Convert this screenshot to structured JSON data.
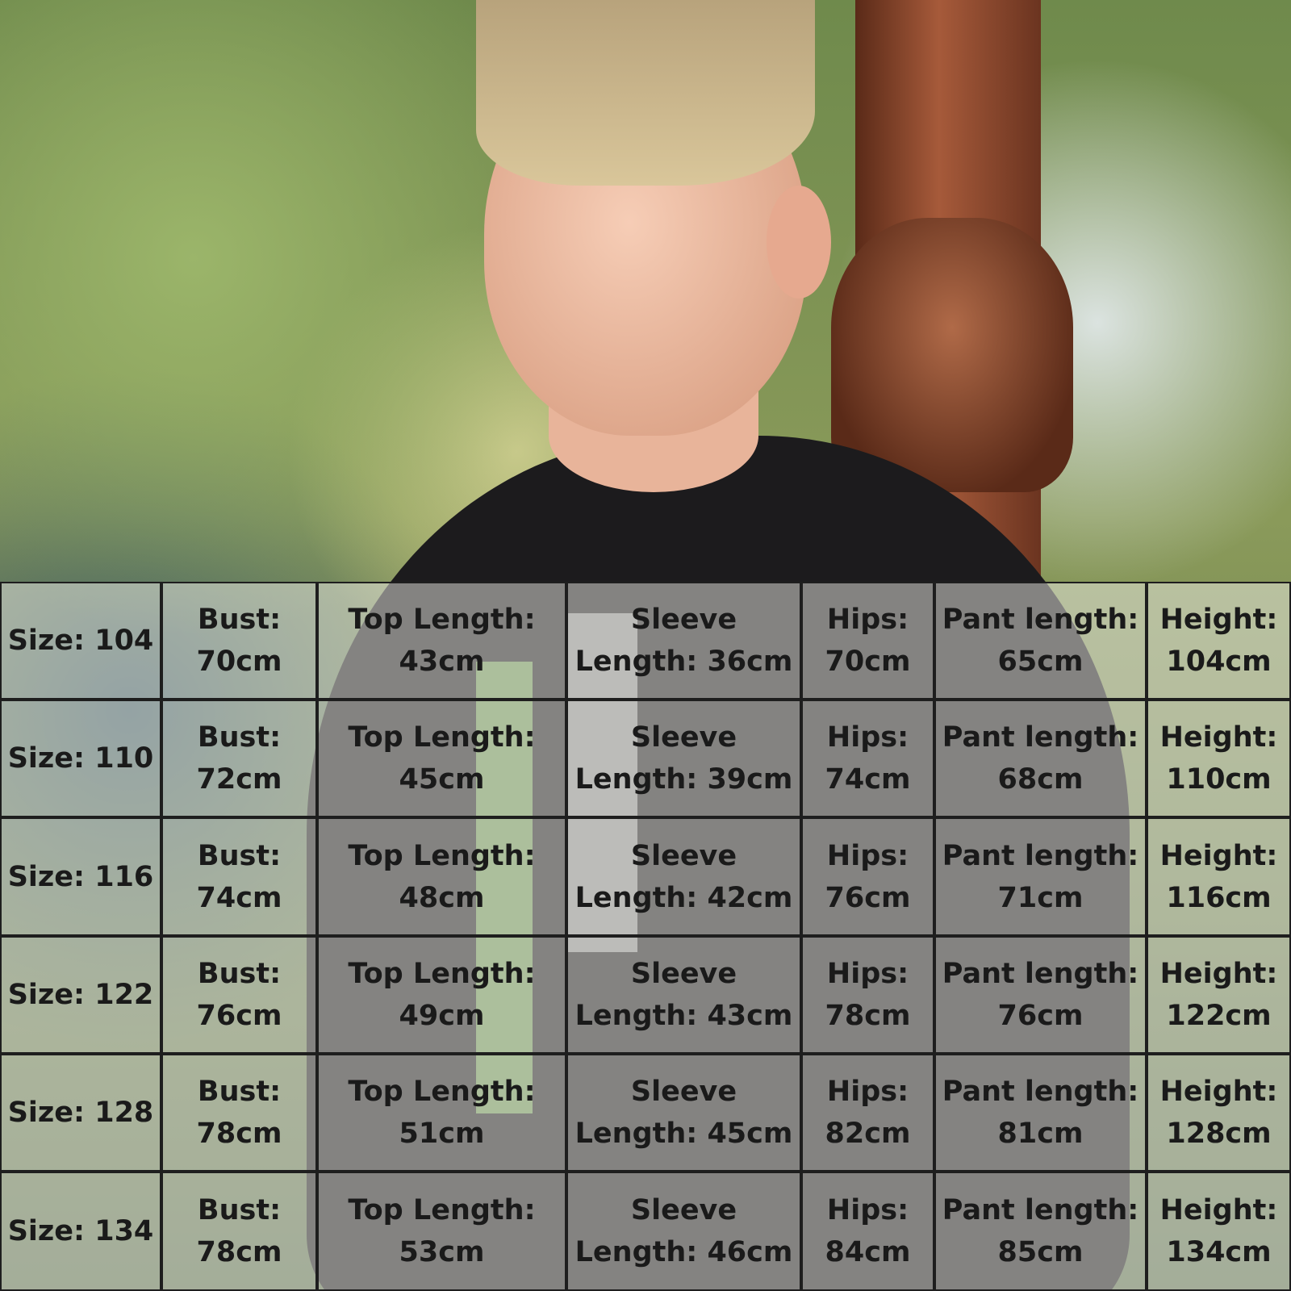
{
  "table": {
    "rows": [
      [
        [
          "Size: 104"
        ],
        [
          "Bust:",
          "70cm"
        ],
        [
          "Top Length:",
          "43cm"
        ],
        [
          "Sleeve",
          "Length: 36cm"
        ],
        [
          "Hips:",
          "70cm"
        ],
        [
          "Pant length:",
          "65cm"
        ],
        [
          "Height:",
          "104cm"
        ]
      ],
      [
        [
          "Size: 110"
        ],
        [
          "Bust:",
          "72cm"
        ],
        [
          "Top Length:",
          "45cm"
        ],
        [
          "Sleeve",
          "Length: 39cm"
        ],
        [
          "Hips:",
          "74cm"
        ],
        [
          "Pant length:",
          "68cm"
        ],
        [
          "Height:",
          "110cm"
        ]
      ],
      [
        [
          "Size: 116"
        ],
        [
          "Bust:",
          "74cm"
        ],
        [
          "Top Length:",
          "48cm"
        ],
        [
          "Sleeve",
          "Length: 42cm"
        ],
        [
          "Hips:",
          "76cm"
        ],
        [
          "Pant length:",
          "71cm"
        ],
        [
          "Height:",
          "116cm"
        ]
      ],
      [
        [
          "Size: 122"
        ],
        [
          "Bust:",
          "76cm"
        ],
        [
          "Top Length:",
          "49cm"
        ],
        [
          "Sleeve",
          "Length: 43cm"
        ],
        [
          "Hips:",
          "78cm"
        ],
        [
          "Pant length:",
          "76cm"
        ],
        [
          "Height:",
          "122cm"
        ]
      ],
      [
        [
          "Size: 128"
        ],
        [
          "Bust:",
          "78cm"
        ],
        [
          "Top Length:",
          "51cm"
        ],
        [
          "Sleeve",
          "Length: 45cm"
        ],
        [
          "Hips:",
          "82cm"
        ],
        [
          "Pant length:",
          "81cm"
        ],
        [
          "Height:",
          "128cm"
        ]
      ],
      [
        [
          "Size: 134"
        ],
        [
          "Bust:",
          "78cm"
        ],
        [
          "Top Length:",
          "53cm"
        ],
        [
          "Sleeve",
          "Length: 46cm"
        ],
        [
          "Hips:",
          "84cm"
        ],
        [
          "Pant length:",
          "85cm"
        ],
        [
          "Height:",
          "134cm"
        ]
      ]
    ]
  }
}
